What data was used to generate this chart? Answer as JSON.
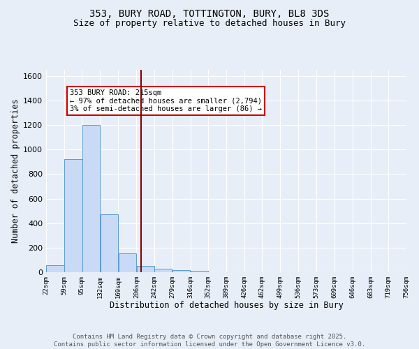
{
  "title_line1": "353, BURY ROAD, TOTTINGTON, BURY, BL8 3DS",
  "title_line2": "Size of property relative to detached houses in Bury",
  "xlabel": "Distribution of detached houses by size in Bury",
  "ylabel": "Number of detached properties",
  "bar_left_edges": [
    22,
    59,
    95,
    132,
    169,
    206,
    242,
    279,
    316,
    352,
    389,
    426,
    462,
    499,
    536,
    573,
    609,
    646,
    683,
    719
  ],
  "bar_heights": [
    55,
    920,
    1200,
    475,
    155,
    50,
    30,
    15,
    10,
    0,
    0,
    0,
    0,
    0,
    0,
    0,
    0,
    0,
    0,
    0
  ],
  "bin_width": 37,
  "bar_color": "#c8daf5",
  "bar_edge_color": "#5a9bd5",
  "property_size": 215,
  "vline_color": "#8b0000",
  "annotation_text": "353 BURY ROAD: 215sqm\n← 97% of detached houses are smaller (2,794)\n3% of semi-detached houses are larger (86) →",
  "annotation_box_color": "white",
  "annotation_box_edge_color": "#cc0000",
  "xlim_left": 22,
  "xlim_right": 756,
  "ylim_top": 1650,
  "tick_labels": [
    "22sqm",
    "59sqm",
    "95sqm",
    "132sqm",
    "169sqm",
    "206sqm",
    "242sqm",
    "279sqm",
    "316sqm",
    "352sqm",
    "389sqm",
    "426sqm",
    "462sqm",
    "499sqm",
    "536sqm",
    "573sqm",
    "609sqm",
    "646sqm",
    "683sqm",
    "719sqm",
    "756sqm"
  ],
  "tick_positions": [
    22,
    59,
    95,
    132,
    169,
    206,
    242,
    279,
    316,
    352,
    389,
    426,
    462,
    499,
    536,
    573,
    609,
    646,
    683,
    719,
    756
  ],
  "background_color": "#e8eef8",
  "grid_color": "#ffffff",
  "footer_text": "Contains HM Land Registry data © Crown copyright and database right 2025.\nContains public sector information licensed under the Open Government Licence v3.0.",
  "title_fontsize": 10,
  "subtitle_fontsize": 9,
  "axis_label_fontsize": 8.5,
  "tick_label_fontsize": 6.5,
  "annotation_fontsize": 7.5,
  "footer_fontsize": 6.5,
  "ytick_fontsize": 8
}
